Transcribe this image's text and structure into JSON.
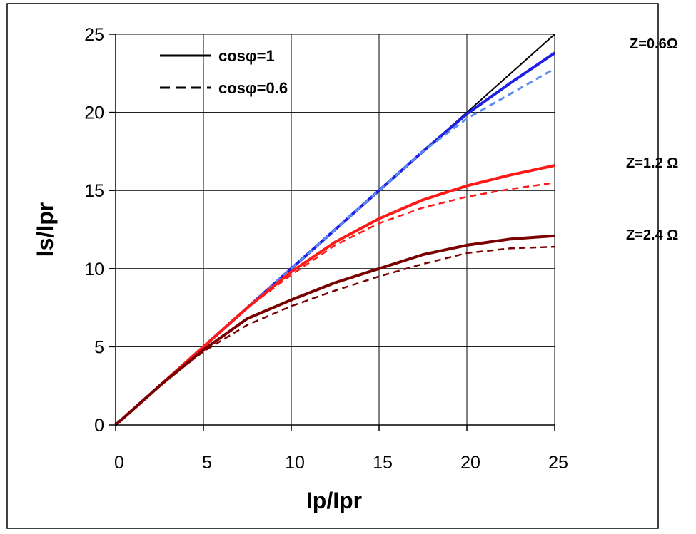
{
  "chart_data": {
    "type": "line",
    "xlabel": "Ip/Ipr",
    "ylabel": "Is/Ipr",
    "xlim": [
      0,
      25
    ],
    "ylim": [
      0,
      25
    ],
    "xticks": [
      "0",
      "5",
      "10",
      "15",
      "20",
      "25"
    ],
    "yticks": [
      "0",
      "5",
      "10",
      "15",
      "20",
      "25"
    ],
    "grid": true,
    "legend": {
      "placement": "top-left",
      "entries": [
        {
          "label": "cosφ=1",
          "style": "solid"
        },
        {
          "label": "cosφ=0.6",
          "style": "dashed"
        }
      ]
    },
    "impedance_labels": [
      {
        "text": "Z=0.6Ω",
        "y": 25
      },
      {
        "text": "Z=1.2 Ω",
        "y": 16.8
      },
      {
        "text": "Z=2.4 Ω",
        "y": 12.3
      }
    ],
    "series": [
      {
        "color": "#000000",
        "style": "solid",
        "width": 2,
        "x": [
          0,
          25
        ],
        "y": [
          0,
          25
        ]
      },
      {
        "color": "#1f1fe6",
        "style": "solid",
        "width": 4,
        "x": [
          0,
          5,
          10,
          15,
          17.5,
          20,
          22.5,
          25
        ],
        "y": [
          0,
          5,
          10,
          15,
          17.5,
          19.9,
          21.9,
          23.8
        ]
      },
      {
        "color": "#5b8ef0",
        "style": "dashed",
        "width": 3,
        "x": [
          0,
          5,
          10,
          15,
          17.5,
          20,
          22.5,
          25
        ],
        "y": [
          0,
          5,
          10,
          15,
          17.5,
          19.6,
          21.2,
          22.8
        ]
      },
      {
        "color": "#ff1a1a",
        "style": "solid",
        "width": 4,
        "x": [
          0,
          2.5,
          5,
          7.5,
          10,
          12.5,
          15,
          17.5,
          20,
          22.5,
          25
        ],
        "y": [
          0,
          2.5,
          5,
          7.5,
          9.8,
          11.7,
          13.2,
          14.4,
          15.3,
          16,
          16.6
        ]
      },
      {
        "color": "#ff1a1a",
        "style": "dashed",
        "width": 2.5,
        "x": [
          0,
          2.5,
          5,
          7.5,
          10,
          12.5,
          15,
          17.5,
          20,
          22.5,
          25
        ],
        "y": [
          0,
          2.5,
          5,
          7.5,
          9.6,
          11.5,
          12.9,
          13.9,
          14.6,
          15.1,
          15.5
        ]
      },
      {
        "color": "#7a0000",
        "style": "solid",
        "width": 4,
        "x": [
          0,
          2.5,
          5,
          7.5,
          10,
          12.5,
          15,
          17.5,
          20,
          22.5,
          25
        ],
        "y": [
          0,
          2.5,
          4.8,
          6.8,
          8,
          9.1,
          10,
          10.9,
          11.5,
          11.9,
          12.1
        ]
      },
      {
        "color": "#7a0000",
        "style": "dashed",
        "width": 2.5,
        "x": [
          0,
          2.5,
          5,
          7.5,
          10,
          12.5,
          15,
          17.5,
          20,
          22.5,
          25
        ],
        "y": [
          0,
          2.5,
          4.7,
          6.4,
          7.6,
          8.6,
          9.5,
          10.3,
          11,
          11.3,
          11.4
        ]
      }
    ]
  }
}
